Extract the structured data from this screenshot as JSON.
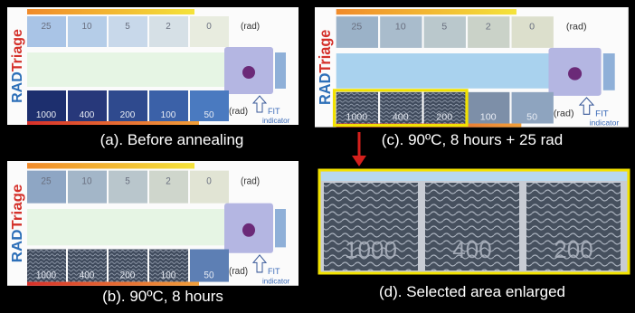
{
  "card": {
    "brand": [
      "RAD",
      "Triage"
    ],
    "top_labels": [
      "25",
      "10",
      "5",
      "2",
      "0"
    ],
    "bottom_labels": [
      "1000",
      "400",
      "200",
      "100",
      "50"
    ],
    "unit": "(rad)",
    "fit": "FIT",
    "indicator": "indicator"
  },
  "panels": [
    {
      "caption": "(a). Before annealing"
    },
    {
      "caption": "(c). 90ºC, 8 hours + 25 rad"
    },
    {
      "caption": "(b). 90ºC, 8 hours"
    },
    {
      "caption": "(d). Selected area enlarged"
    }
  ]
}
